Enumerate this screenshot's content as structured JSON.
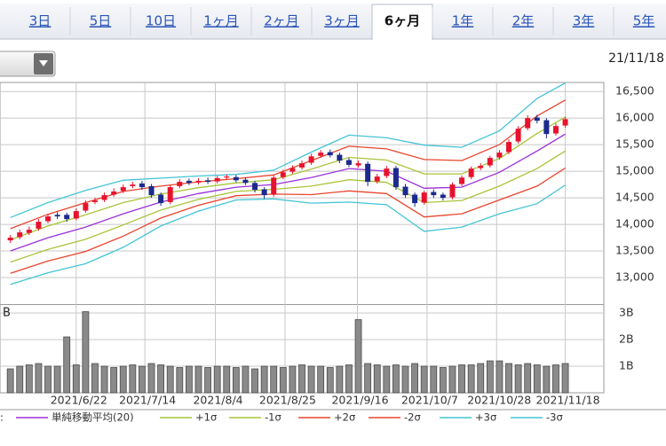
{
  "tabs": [
    "3日",
    "5日",
    "10日",
    "1ヶ月",
    "2ヶ月",
    "3ヶ月",
    "6ヶ月",
    "1年",
    "2年",
    "3年",
    "5年"
  ],
  "active_tab": 6,
  "date": "21/11/18",
  "volume_side_label": "B",
  "legend_prefix": ":",
  "chart_data": [
    {
      "type": "candlestick",
      "up_color": "#e8122d",
      "down_color": "#1b2a8c",
      "xlim": [
        -1.1,
        63.1
      ],
      "xticks": [
        {
          "value": 7,
          "label": "2021/6/22"
        },
        {
          "value": 14.3,
          "label": "2021/7/14"
        },
        {
          "value": 21.8,
          "label": "2021/8/4"
        },
        {
          "value": 29.2,
          "label": "2021/8/25"
        },
        {
          "value": 36.9,
          "label": "2021/9/16"
        },
        {
          "value": 44.3,
          "label": "2021/10/7"
        },
        {
          "value": 51.7,
          "label": "2021/10/28"
        },
        {
          "value": 59,
          "label": "2021/11/18"
        }
      ],
      "ylim": [
        12500,
        16670
      ],
      "yticks": [
        {
          "value": 13000,
          "label": "13,000"
        },
        {
          "value": 13500,
          "label": "13,500"
        },
        {
          "value": 14000,
          "label": "14,000"
        },
        {
          "value": 14500,
          "label": "14,500"
        },
        {
          "value": 15000,
          "label": "15,000"
        },
        {
          "value": 15500,
          "label": "15,500"
        },
        {
          "value": 16000,
          "label": "16,000"
        },
        {
          "value": 16500,
          "label": "16,500"
        }
      ],
      "grid": true,
      "open": [
        13700,
        13760,
        13840,
        13920,
        14060,
        14180,
        14180,
        14110,
        14260,
        14420,
        14460,
        14560,
        14630,
        14720,
        14770,
        14720,
        14560,
        14420,
        14720,
        14820,
        14790,
        14830,
        14810,
        14880,
        14890,
        14840,
        14780,
        14660,
        14560,
        14890,
        14990,
        15070,
        15160,
        15290,
        15360,
        15310,
        15210,
        15110,
        15140,
        14810,
        14910,
        15060,
        14710,
        14560,
        14410,
        14610,
        14560,
        14510,
        14760,
        14890,
        15060,
        15110,
        15260,
        15360,
        15560,
        15810,
        16010,
        15960,
        15710,
        15860
      ],
      "high": [
        13800,
        13900,
        13960,
        14100,
        14200,
        14230,
        14220,
        14300,
        14450,
        14500,
        14600,
        14680,
        14750,
        14800,
        14820,
        14760,
        14600,
        14740,
        14850,
        14860,
        14870,
        14880,
        14910,
        14940,
        14930,
        14880,
        14820,
        14700,
        14920,
        15030,
        15110,
        15200,
        15330,
        15400,
        15410,
        15350,
        15250,
        15200,
        15180,
        14950,
        15100,
        15100,
        14760,
        14600,
        14640,
        14660,
        14600,
        14790,
        14920,
        15090,
        15150,
        15290,
        15400,
        15600,
        15850,
        16050,
        16060,
        16000,
        15900,
        16020
      ],
      "low": [
        13650,
        13720,
        13800,
        13880,
        14020,
        14100,
        14050,
        14080,
        14220,
        14380,
        14420,
        14520,
        14590,
        14680,
        14650,
        14500,
        14350,
        14380,
        14680,
        14740,
        14750,
        14760,
        14770,
        14840,
        14790,
        14740,
        14600,
        14480,
        14520,
        14850,
        14950,
        15030,
        15120,
        15250,
        15260,
        15150,
        15080,
        15070,
        14720,
        14770,
        14870,
        14650,
        14500,
        14330,
        14370,
        14500,
        14450,
        14470,
        14720,
        14850,
        15020,
        15070,
        15220,
        15320,
        15520,
        15770,
        15900,
        15620,
        15670,
        15820
      ],
      "close": [
        13750,
        13850,
        13900,
        14050,
        14150,
        14150,
        14100,
        14250,
        14400,
        14450,
        14550,
        14620,
        14700,
        14750,
        14700,
        14550,
        14400,
        14700,
        14800,
        14780,
        14820,
        14800,
        14870,
        14900,
        14830,
        14780,
        14650,
        14550,
        14880,
        14980,
        15060,
        15150,
        15280,
        15350,
        15300,
        15200,
        15120,
        15150,
        14800,
        14900,
        15050,
        14700,
        14550,
        14400,
        14600,
        14550,
        14500,
        14750,
        14880,
        15050,
        15100,
        15250,
        15350,
        15550,
        15800,
        16000,
        15950,
        15700,
        15850,
        15980
      ],
      "band_x": [
        0,
        4,
        8,
        12,
        16,
        20,
        24,
        28,
        32,
        36,
        40,
        44,
        48,
        52,
        56,
        59
      ],
      "series": [
        {
          "name": "単純移動平均(20)",
          "color": "#9b30d9",
          "values": [
            13500,
            13750,
            13950,
            14200,
            14420,
            14580,
            14700,
            14750,
            14880,
            15050,
            15000,
            14680,
            14700,
            14980,
            15380,
            15700
          ]
        },
        {
          "name": "+1σ",
          "color": "#a9c43a",
          "values": [
            13710,
            13970,
            14180,
            14410,
            14570,
            14690,
            14780,
            14840,
            15040,
            15260,
            15210,
            14950,
            14950,
            15240,
            15710,
            16020
          ]
        },
        {
          "name": "-1σ",
          "color": "#a9c43a",
          "values": [
            13290,
            13530,
            13720,
            13990,
            14270,
            14470,
            14620,
            14660,
            14720,
            14840,
            14790,
            14410,
            14450,
            14720,
            15050,
            15380
          ]
        },
        {
          "name": "+2σ",
          "color": "#e8452e",
          "values": [
            13920,
            14190,
            14410,
            14620,
            14720,
            14800,
            14860,
            14930,
            15200,
            15470,
            15420,
            15220,
            15200,
            15500,
            16040,
            16340
          ]
        },
        {
          "name": "-2σ",
          "color": "#e8452e",
          "values": [
            13080,
            13310,
            13490,
            13780,
            14120,
            14360,
            14540,
            14570,
            14560,
            14630,
            14580,
            14140,
            14200,
            14460,
            14720,
            15060
          ]
        },
        {
          "name": "+3σ",
          "color": "#45c4d6",
          "values": [
            14130,
            14410,
            14640,
            14830,
            14870,
            14910,
            14940,
            15020,
            15360,
            15680,
            15630,
            15490,
            15450,
            15760,
            16370,
            16660
          ]
        },
        {
          "name": "-3σ",
          "color": "#45c4d6",
          "values": [
            12870,
            13090,
            13260,
            13570,
            13970,
            14250,
            14460,
            14480,
            14400,
            14420,
            14370,
            13870,
            13950,
            14200,
            14390,
            14740
          ]
        }
      ]
    },
    {
      "type": "bar",
      "color": "#8a8a8a",
      "ylim": [
        0,
        3.3
      ],
      "yticks": [
        {
          "value": 1,
          "label": "1B"
        },
        {
          "value": 2,
          "label": "2B"
        },
        {
          "value": 3,
          "label": "3B"
        }
      ],
      "grid": true,
      "values": [
        0.9,
        1.0,
        1.05,
        1.1,
        1.0,
        1.0,
        2.1,
        1.05,
        3.05,
        1.1,
        1.0,
        0.95,
        1.0,
        1.05,
        1.0,
        1.1,
        1.05,
        1.0,
        0.95,
        1.0,
        1.0,
        0.95,
        1.0,
        1.0,
        0.95,
        1.0,
        0.9,
        1.0,
        1.0,
        0.95,
        1.0,
        1.05,
        1.0,
        1.0,
        0.95,
        1.0,
        1.05,
        2.75,
        1.1,
        1.05,
        1.0,
        1.05,
        1.0,
        1.1,
        1.0,
        1.0,
        0.95,
        1.0,
        1.05,
        1.05,
        1.1,
        1.2,
        1.2,
        1.1,
        1.05,
        1.1,
        1.05,
        1.0,
        1.05,
        1.1
      ]
    }
  ]
}
